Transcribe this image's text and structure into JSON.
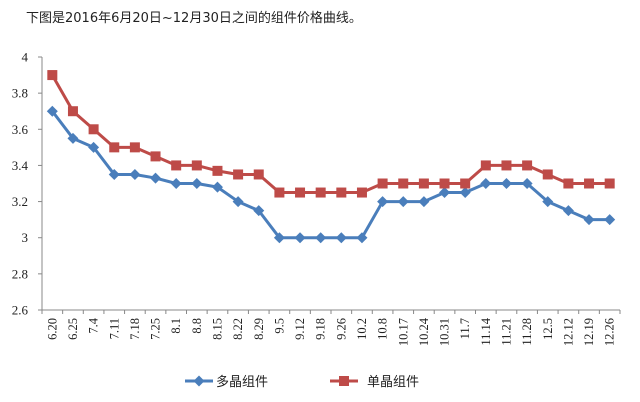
{
  "caption": "下图是2016年6月20日~12月30日之间的组件价格曲线。",
  "chart_data": {
    "type": "line",
    "title": "",
    "xlabel": "",
    "ylabel": "",
    "ylim": [
      2.6,
      4
    ],
    "yticks": [
      2.6,
      2.8,
      3,
      3.2,
      3.4,
      3.6,
      3.8,
      4
    ],
    "ytick_labels": [
      "2.6",
      "2.8",
      "3",
      "3.2",
      "3.4",
      "3.6",
      "3.8",
      "4"
    ],
    "grid": false,
    "legend": "bottom",
    "categories": [
      "6.20",
      "6.25",
      "7.4",
      "7.11",
      "7.18",
      "7.25",
      "8.1",
      "8.8",
      "8.15",
      "8.22",
      "8.29",
      "9.5",
      "9.12",
      "9.18",
      "9.26",
      "10.2",
      "10.8",
      "10.17",
      "10.24",
      "10.31",
      "11.7",
      "11.14",
      "11.21",
      "11.28",
      "12.5",
      "12.12",
      "12.19",
      "12.26"
    ],
    "series": [
      {
        "name": "多晶组件",
        "color": "#4a7ebb",
        "marker": "diamond",
        "values": [
          3.7,
          3.55,
          3.5,
          3.35,
          3.35,
          3.33,
          3.3,
          3.3,
          3.28,
          3.2,
          3.15,
          3.0,
          3.0,
          3.0,
          3.0,
          3.0,
          3.2,
          3.2,
          3.2,
          3.25,
          3.25,
          3.3,
          3.3,
          3.3,
          3.2,
          3.15,
          3.1,
          3.1
        ]
      },
      {
        "name": "单晶组件",
        "color": "#be4b48",
        "marker": "square",
        "values": [
          3.9,
          3.7,
          3.6,
          3.5,
          3.5,
          3.45,
          3.4,
          3.4,
          3.37,
          3.35,
          3.35,
          3.25,
          3.25,
          3.25,
          3.25,
          3.25,
          3.3,
          3.3,
          3.3,
          3.3,
          3.3,
          3.4,
          3.4,
          3.4,
          3.35,
          3.3,
          3.3,
          3.3
        ]
      }
    ]
  }
}
